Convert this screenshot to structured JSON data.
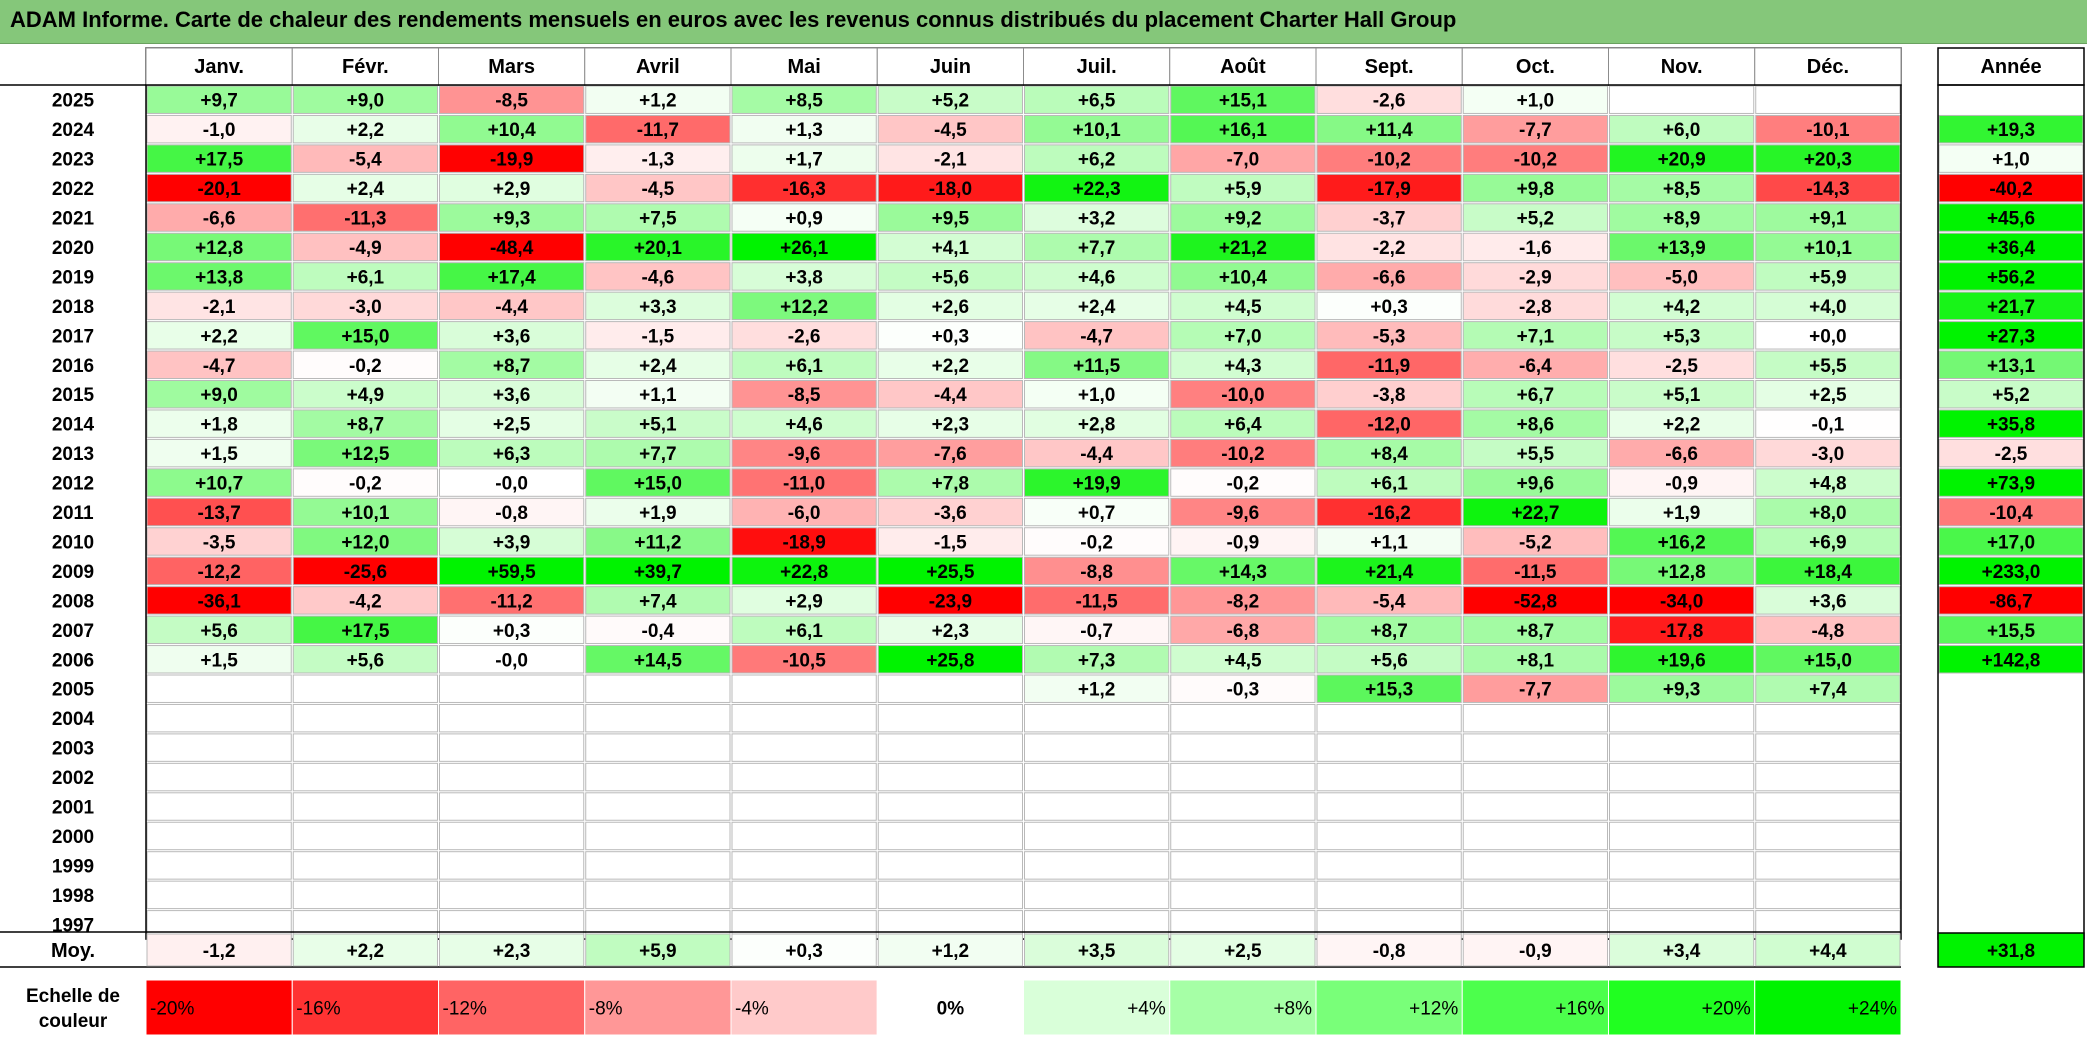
{
  "title": "ADAM Informe. Carte de chaleur des rendements mensuels en euros avec les revenus connus distribués du placement Charter Hall Group",
  "chart_data": {
    "type": "heatmap",
    "months": [
      "Janv.",
      "Févr.",
      "Mars",
      "Avril",
      "Mai",
      "Juin",
      "Juil.",
      "Août",
      "Sept.",
      "Oct.",
      "Nov.",
      "Déc."
    ],
    "annual_header": "Année",
    "rows": [
      {
        "year": "2025",
        "values": [
          "+9,7",
          "+9,0",
          "-8,5",
          "+1,2",
          "+8,5",
          "+5,2",
          "+6,5",
          "+15,1",
          "-2,6",
          "+1,0",
          "",
          ""
        ],
        "annual": ""
      },
      {
        "year": "2024",
        "values": [
          "-1,0",
          "+2,2",
          "+10,4",
          "-11,7",
          "+1,3",
          "-4,5",
          "+10,1",
          "+16,1",
          "+11,4",
          "-7,7",
          "+6,0",
          "-10,1"
        ],
        "annual": "+19,3"
      },
      {
        "year": "2023",
        "values": [
          "+17,5",
          "-5,4",
          "-19,9",
          "-1,3",
          "+1,7",
          "-2,1",
          "+6,2",
          "-7,0",
          "-10,2",
          "-10,2",
          "+20,9",
          "+20,3"
        ],
        "annual": "+1,0"
      },
      {
        "year": "2022",
        "values": [
          "-20,1",
          "+2,4",
          "+2,9",
          "-4,5",
          "-16,3",
          "-18,0",
          "+22,3",
          "+5,9",
          "-17,9",
          "+9,8",
          "+8,5",
          "-14,3"
        ],
        "annual": "-40,2"
      },
      {
        "year": "2021",
        "values": [
          "-6,6",
          "-11,3",
          "+9,3",
          "+7,5",
          "+0,9",
          "+9,5",
          "+3,2",
          "+9,2",
          "-3,7",
          "+5,2",
          "+8,9",
          "+9,1"
        ],
        "annual": "+45,6"
      },
      {
        "year": "2020",
        "values": [
          "+12,8",
          "-4,9",
          "-48,4",
          "+20,1",
          "+26,1",
          "+4,1",
          "+7,7",
          "+21,2",
          "-2,2",
          "-1,6",
          "+13,9",
          "+10,1"
        ],
        "annual": "+36,4"
      },
      {
        "year": "2019",
        "values": [
          "+13,8",
          "+6,1",
          "+17,4",
          "-4,6",
          "+3,8",
          "+5,6",
          "+4,6",
          "+10,4",
          "-6,6",
          "-2,9",
          "-5,0",
          "+5,9"
        ],
        "annual": "+56,2"
      },
      {
        "year": "2018",
        "values": [
          "-2,1",
          "-3,0",
          "-4,4",
          "+3,3",
          "+12,2",
          "+2,6",
          "+2,4",
          "+4,5",
          "+0,3",
          "-2,8",
          "+4,2",
          "+4,0"
        ],
        "annual": "+21,7"
      },
      {
        "year": "2017",
        "values": [
          "+2,2",
          "+15,0",
          "+3,6",
          "-1,5",
          "-2,6",
          "+0,3",
          "-4,7",
          "+7,0",
          "-5,3",
          "+7,1",
          "+5,3",
          "+0,0"
        ],
        "annual": "+27,3"
      },
      {
        "year": "2016",
        "values": [
          "-4,7",
          "-0,2",
          "+8,7",
          "+2,4",
          "+6,1",
          "+2,2",
          "+11,5",
          "+4,3",
          "-11,9",
          "-6,4",
          "-2,5",
          "+5,5"
        ],
        "annual": "+13,1"
      },
      {
        "year": "2015",
        "values": [
          "+9,0",
          "+4,9",
          "+3,6",
          "+1,1",
          "-8,5",
          "-4,4",
          "+1,0",
          "-10,0",
          "-3,8",
          "+6,7",
          "+5,1",
          "+2,5"
        ],
        "annual": "+5,2"
      },
      {
        "year": "2014",
        "values": [
          "+1,8",
          "+8,7",
          "+2,5",
          "+5,1",
          "+4,6",
          "+2,3",
          "+2,8",
          "+6,4",
          "-12,0",
          "+8,6",
          "+2,2",
          "-0,1"
        ],
        "annual": "+35,8"
      },
      {
        "year": "2013",
        "values": [
          "+1,5",
          "+12,5",
          "+6,3",
          "+7,7",
          "-9,6",
          "-7,6",
          "-4,4",
          "-10,2",
          "+8,4",
          "+5,5",
          "-6,6",
          "-3,0"
        ],
        "annual": "-2,5"
      },
      {
        "year": "2012",
        "values": [
          "+10,7",
          "-0,2",
          "-0,0",
          "+15,0",
          "-11,0",
          "+7,8",
          "+19,9",
          "-0,2",
          "+6,1",
          "+9,6",
          "-0,9",
          "+4,8"
        ],
        "annual": "+73,9"
      },
      {
        "year": "2011",
        "values": [
          "-13,7",
          "+10,1",
          "-0,8",
          "+1,9",
          "-6,0",
          "-3,6",
          "+0,7",
          "-9,6",
          "-16,2",
          "+22,7",
          "+1,9",
          "+8,0"
        ],
        "annual": "-10,4"
      },
      {
        "year": "2010",
        "values": [
          "-3,5",
          "+12,0",
          "+3,9",
          "+11,2",
          "-18,9",
          "-1,5",
          "-0,2",
          "-0,9",
          "+1,1",
          "-5,2",
          "+16,2",
          "+6,9"
        ],
        "annual": "+17,0"
      },
      {
        "year": "2009",
        "values": [
          "-12,2",
          "-25,6",
          "+59,5",
          "+39,7",
          "+22,8",
          "+25,5",
          "-8,8",
          "+14,3",
          "+21,4",
          "-11,5",
          "+12,8",
          "+18,4"
        ],
        "annual": "+233,0"
      },
      {
        "year": "2008",
        "values": [
          "-36,1",
          "-4,2",
          "-11,2",
          "+7,4",
          "+2,9",
          "-23,9",
          "-11,5",
          "-8,2",
          "-5,4",
          "-52,8",
          "-34,0",
          "+3,6"
        ],
        "annual": "-86,7"
      },
      {
        "year": "2007",
        "values": [
          "+5,6",
          "+17,5",
          "+0,3",
          "-0,4",
          "+6,1",
          "+2,3",
          "-0,7",
          "-6,8",
          "+8,7",
          "+8,7",
          "-17,8",
          "-4,8"
        ],
        "annual": "+15,5"
      },
      {
        "year": "2006",
        "values": [
          "+1,5",
          "+5,6",
          "-0,0",
          "+14,5",
          "-10,5",
          "+25,8",
          "+7,3",
          "+4,5",
          "+5,6",
          "+8,1",
          "+19,6",
          "+15,0"
        ],
        "annual": "+142,8"
      },
      {
        "year": "2005",
        "values": [
          "",
          "",
          "",
          "",
          "",
          "",
          "+1,2",
          "-0,3",
          "+15,3",
          "-7,7",
          "+9,3",
          "+7,4"
        ],
        "annual": ""
      },
      {
        "year": "2004",
        "values": [
          "",
          "",
          "",
          "",
          "",
          "",
          "",
          "",
          "",
          "",
          "",
          ""
        ],
        "annual": ""
      },
      {
        "year": "2003",
        "values": [
          "",
          "",
          "",
          "",
          "",
          "",
          "",
          "",
          "",
          "",
          "",
          ""
        ],
        "annual": ""
      },
      {
        "year": "2002",
        "values": [
          "",
          "",
          "",
          "",
          "",
          "",
          "",
          "",
          "",
          "",
          "",
          ""
        ],
        "annual": ""
      },
      {
        "year": "2001",
        "values": [
          "",
          "",
          "",
          "",
          "",
          "",
          "",
          "",
          "",
          "",
          "",
          ""
        ],
        "annual": ""
      },
      {
        "year": "2000",
        "values": [
          "",
          "",
          "",
          "",
          "",
          "",
          "",
          "",
          "",
          "",
          "",
          ""
        ],
        "annual": ""
      },
      {
        "year": "1999",
        "values": [
          "",
          "",
          "",
          "",
          "",
          "",
          "",
          "",
          "",
          "",
          "",
          ""
        ],
        "annual": ""
      },
      {
        "year": "1998",
        "values": [
          "",
          "",
          "",
          "",
          "",
          "",
          "",
          "",
          "",
          "",
          "",
          ""
        ],
        "annual": ""
      },
      {
        "year": "1997",
        "values": [
          "",
          "",
          "",
          "",
          "",
          "",
          "",
          "",
          "",
          "",
          "",
          ""
        ],
        "annual": ""
      }
    ],
    "average": {
      "label": "Moy.",
      "values": [
        "-1,2",
        "+2,2",
        "+2,3",
        "+5,9",
        "+0,3",
        "+1,2",
        "+3,5",
        "+2,5",
        "-0,8",
        "-0,9",
        "+3,4",
        "+4,4"
      ],
      "annual": "+31,8"
    },
    "scale": {
      "label_line1": "Echelle de",
      "label_line2": "couleur",
      "items": [
        "-20%",
        "-16%",
        "-12%",
        "-8%",
        "-4%",
        "0%",
        "+4%",
        "+8%",
        "+12%",
        "+16%",
        "+20%",
        "+24%"
      ],
      "colors": [
        "#ff0000",
        "#ff3232",
        "#ff6464",
        "#ff9797",
        "#ffcaca",
        "#ffffff",
        "#d9ffd9",
        "#a6ffa6",
        "#79ff79",
        "#4cff4c",
        "#20ff20",
        "#00f300"
      ]
    }
  }
}
